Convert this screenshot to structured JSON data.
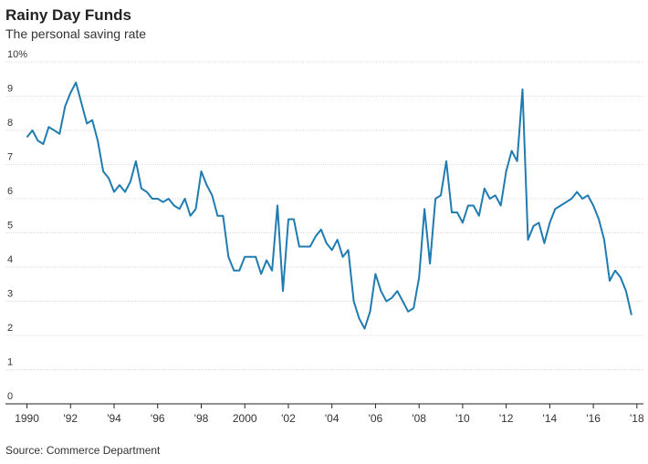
{
  "chart_data": {
    "type": "line",
    "title": "Rainy Day Funds",
    "subtitle": "The personal saving rate",
    "source": "Source: Commerce Department",
    "x": [
      1990,
      1990.25,
      1990.5,
      1990.75,
      1991,
      1991.25,
      1991.5,
      1991.75,
      1992,
      1992.25,
      1992.5,
      1992.75,
      1993,
      1993.25,
      1993.5,
      1993.75,
      1994,
      1994.25,
      1994.5,
      1994.75,
      1995,
      1995.25,
      1995.5,
      1995.75,
      1996,
      1996.25,
      1996.5,
      1996.75,
      1997,
      1997.25,
      1997.5,
      1997.75,
      1998,
      1998.25,
      1998.5,
      1998.75,
      1999,
      1999.25,
      1999.5,
      1999.75,
      2000,
      2000.25,
      2000.5,
      2000.75,
      2001,
      2001.25,
      2001.5,
      2001.75,
      2002,
      2002.25,
      2002.5,
      2002.75,
      2003,
      2003.25,
      2003.5,
      2003.75,
      2004,
      2004.25,
      2004.5,
      2004.75,
      2005,
      2005.25,
      2005.5,
      2005.75,
      2006,
      2006.25,
      2006.5,
      2006.75,
      2007,
      2007.25,
      2007.5,
      2007.75,
      2008,
      2008.25,
      2008.5,
      2008.75,
      2009,
      2009.25,
      2009.5,
      2009.75,
      2010,
      2010.25,
      2010.5,
      2010.75,
      2011,
      2011.25,
      2011.5,
      2011.75,
      2012,
      2012.25,
      2012.5,
      2012.75,
      2013,
      2013.25,
      2013.5,
      2013.75,
      2014,
      2014.25,
      2014.5,
      2014.75,
      2015,
      2015.25,
      2015.5,
      2015.75,
      2016,
      2016.25,
      2016.5,
      2016.75,
      2017,
      2017.25,
      2017.5,
      2017.75
    ],
    "series": [
      {
        "name": "Personal saving rate",
        "color": "#1f7bb0",
        "values": [
          7.8,
          8.0,
          7.7,
          7.6,
          8.1,
          8.0,
          7.9,
          8.7,
          9.1,
          9.4,
          8.8,
          8.2,
          8.3,
          7.7,
          6.8,
          6.6,
          6.2,
          6.4,
          6.2,
          6.5,
          7.1,
          6.3,
          6.2,
          6.0,
          6.0,
          5.9,
          6.0,
          5.8,
          5.7,
          6.0,
          5.5,
          5.7,
          6.8,
          6.4,
          6.1,
          5.5,
          5.5,
          4.3,
          3.9,
          3.9,
          4.3,
          4.3,
          4.3,
          3.8,
          4.2,
          3.9,
          5.8,
          3.3,
          5.4,
          5.4,
          4.6,
          4.6,
          4.6,
          4.9,
          5.1,
          4.7,
          4.5,
          4.8,
          4.3,
          4.5,
          3.0,
          2.5,
          2.2,
          2.7,
          3.8,
          3.3,
          3.0,
          3.1,
          3.3,
          3.0,
          2.7,
          2.8,
          3.7,
          5.7,
          4.1,
          6.0,
          6.1,
          7.1,
          5.6,
          5.6,
          5.3,
          5.8,
          5.8,
          5.5,
          6.3,
          6.0,
          6.1,
          5.8,
          6.8,
          7.4,
          7.1,
          9.2,
          4.8,
          5.2,
          5.3,
          4.7,
          5.3,
          5.7,
          5.8,
          5.9,
          6.0,
          6.2,
          6.0,
          6.1,
          5.8,
          5.4,
          4.8,
          3.6,
          3.9,
          3.7,
          3.3,
          2.6
        ]
      }
    ],
    "xlim": [
      1989.6,
      2018.3
    ],
    "xticks": [
      1990,
      {
        "value": 1992,
        "label": "'92"
      },
      {
        "value": 1994,
        "label": "'94"
      },
      {
        "value": 1996,
        "label": "'96"
      },
      {
        "value": 1998,
        "label": "'98"
      },
      2000,
      {
        "value": 2002,
        "label": "'02"
      },
      {
        "value": 2004,
        "label": "'04"
      },
      {
        "value": 2006,
        "label": "'06"
      },
      {
        "value": 2008,
        "label": "'08"
      },
      {
        "value": 2010,
        "label": "'10"
      },
      {
        "value": 2012,
        "label": "'12"
      },
      {
        "value": 2014,
        "label": "'14"
      },
      {
        "value": 2016,
        "label": "'16"
      },
      {
        "value": 2018,
        "label": "'18"
      }
    ],
    "ylim": [
      0,
      10
    ],
    "yticks": [
      0,
      1,
      2,
      3,
      4,
      5,
      6,
      7,
      8,
      9,
      {
        "value": 10,
        "label": "10%"
      }
    ],
    "grid": true
  }
}
